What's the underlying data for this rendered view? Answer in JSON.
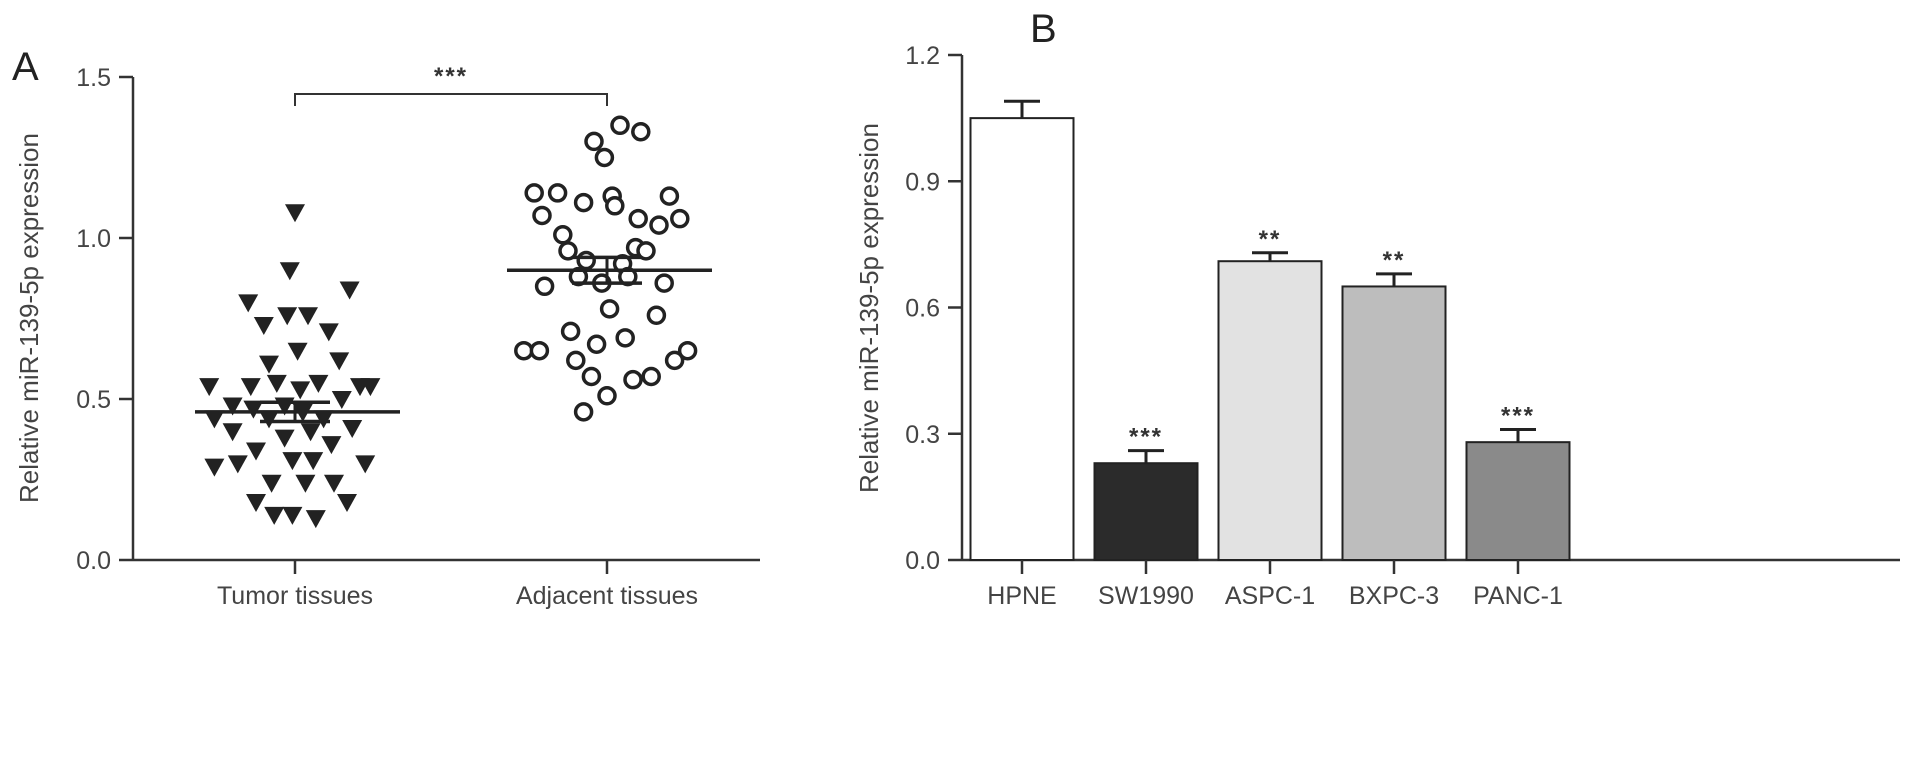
{
  "chart_data": [
    {
      "panel": "A",
      "type": "scatter",
      "ylabel": "Relative miR-139-5p expression",
      "ylim": [
        0,
        1.5
      ],
      "yticks": [
        "0.0",
        "0.5",
        "1.0",
        "1.5"
      ],
      "categories": [
        "Tumor tissues",
        "Adjacent tissues"
      ],
      "significance": "***",
      "series": [
        {
          "category": "Tumor tissues",
          "marker": "triangle-down",
          "mean": 0.46,
          "sem": 0.03,
          "points": [
            {
              "x": -0.33,
              "y": 0.54
            },
            {
              "x": -0.31,
              "y": 0.44
            },
            {
              "x": -0.31,
              "y": 0.29
            },
            {
              "x": -0.24,
              "y": 0.48
            },
            {
              "x": -0.24,
              "y": 0.4
            },
            {
              "x": -0.22,
              "y": 0.3
            },
            {
              "x": -0.18,
              "y": 0.8
            },
            {
              "x": -0.17,
              "y": 0.54
            },
            {
              "x": -0.16,
              "y": 0.47
            },
            {
              "x": -0.15,
              "y": 0.34
            },
            {
              "x": -0.15,
              "y": 0.18
            },
            {
              "x": -0.12,
              "y": 0.73
            },
            {
              "x": -0.1,
              "y": 0.61
            },
            {
              "x": -0.1,
              "y": 0.44
            },
            {
              "x": -0.09,
              "y": 0.24
            },
            {
              "x": -0.08,
              "y": 0.14
            },
            {
              "x": -0.07,
              "y": 0.55
            },
            {
              "x": -0.04,
              "y": 0.48
            },
            {
              "x": -0.04,
              "y": 0.38
            },
            {
              "x": -0.03,
              "y": 0.76
            },
            {
              "x": -0.02,
              "y": 0.9
            },
            {
              "x": -0.01,
              "y": 0.31
            },
            {
              "x": -0.01,
              "y": 0.14
            },
            {
              "x": 0.0,
              "y": 1.08
            },
            {
              "x": 0.01,
              "y": 0.65
            },
            {
              "x": 0.02,
              "y": 0.53
            },
            {
              "x": 0.03,
              "y": 0.46
            },
            {
              "x": 0.04,
              "y": 0.24
            },
            {
              "x": 0.05,
              "y": 0.76
            },
            {
              "x": 0.06,
              "y": 0.4
            },
            {
              "x": 0.07,
              "y": 0.31
            },
            {
              "x": 0.08,
              "y": 0.13
            },
            {
              "x": 0.09,
              "y": 0.55
            },
            {
              "x": 0.11,
              "y": 0.44
            },
            {
              "x": 0.13,
              "y": 0.71
            },
            {
              "x": 0.14,
              "y": 0.36
            },
            {
              "x": 0.15,
              "y": 0.24
            },
            {
              "x": 0.17,
              "y": 0.62
            },
            {
              "x": 0.18,
              "y": 0.5
            },
            {
              "x": 0.2,
              "y": 0.18
            },
            {
              "x": 0.21,
              "y": 0.84
            },
            {
              "x": 0.22,
              "y": 0.41
            },
            {
              "x": 0.25,
              "y": 0.54
            },
            {
              "x": 0.27,
              "y": 0.3
            },
            {
              "x": 0.29,
              "y": 0.54
            }
          ]
        },
        {
          "category": "Adjacent tissues",
          "marker": "circle-open",
          "mean": 0.9,
          "sem": 0.04,
          "points": [
            {
              "x": -0.32,
              "y": 0.65
            },
            {
              "x": -0.28,
              "y": 1.14
            },
            {
              "x": -0.26,
              "y": 0.65
            },
            {
              "x": -0.25,
              "y": 1.07
            },
            {
              "x": -0.24,
              "y": 0.85
            },
            {
              "x": -0.19,
              "y": 1.14
            },
            {
              "x": -0.17,
              "y": 1.01
            },
            {
              "x": -0.15,
              "y": 0.96
            },
            {
              "x": -0.14,
              "y": 0.71
            },
            {
              "x": -0.12,
              "y": 0.62
            },
            {
              "x": -0.11,
              "y": 0.88
            },
            {
              "x": -0.09,
              "y": 0.46
            },
            {
              "x": -0.09,
              "y": 1.11
            },
            {
              "x": -0.08,
              "y": 0.93
            },
            {
              "x": -0.06,
              "y": 0.57
            },
            {
              "x": -0.05,
              "y": 1.3
            },
            {
              "x": -0.04,
              "y": 0.67
            },
            {
              "x": -0.02,
              "y": 0.86
            },
            {
              "x": -0.01,
              "y": 1.25
            },
            {
              "x": 0.0,
              "y": 0.51
            },
            {
              "x": 0.01,
              "y": 0.78
            },
            {
              "x": 0.02,
              "y": 1.13
            },
            {
              "x": 0.03,
              "y": 1.1
            },
            {
              "x": 0.05,
              "y": 1.35
            },
            {
              "x": 0.06,
              "y": 0.92
            },
            {
              "x": 0.07,
              "y": 0.69
            },
            {
              "x": 0.08,
              "y": 0.88
            },
            {
              "x": 0.1,
              "y": 0.56
            },
            {
              "x": 0.11,
              "y": 0.97
            },
            {
              "x": 0.12,
              "y": 1.06
            },
            {
              "x": 0.13,
              "y": 1.33
            },
            {
              "x": 0.15,
              "y": 0.96
            },
            {
              "x": 0.17,
              "y": 0.57
            },
            {
              "x": 0.19,
              "y": 0.76
            },
            {
              "x": 0.2,
              "y": 1.04
            },
            {
              "x": 0.22,
              "y": 0.86
            },
            {
              "x": 0.24,
              "y": 1.13
            },
            {
              "x": 0.26,
              "y": 0.62
            },
            {
              "x": 0.28,
              "y": 1.06
            },
            {
              "x": 0.31,
              "y": 0.65
            }
          ]
        }
      ]
    },
    {
      "panel": "B",
      "type": "bar",
      "ylabel": "Relative miR-139-5p expression",
      "ylim": [
        0,
        1.2
      ],
      "yticks": [
        "0.0",
        "0.3",
        "0.6",
        "0.9",
        "1.2"
      ],
      "categories": [
        "HPNE",
        "SW1990",
        "ASPC-1",
        "BXPC-3",
        "PANC-1"
      ],
      "values": [
        1.05,
        0.23,
        0.71,
        0.65,
        0.28
      ],
      "errors": [
        0.04,
        0.03,
        0.02,
        0.03,
        0.03
      ],
      "significance": [
        "",
        "***",
        "**",
        "**",
        "***"
      ],
      "colors": [
        "#ffffff",
        "#2b2b2b",
        "#e2e2e2",
        "#bdbdbd",
        "#8a8a8a"
      ]
    }
  ]
}
